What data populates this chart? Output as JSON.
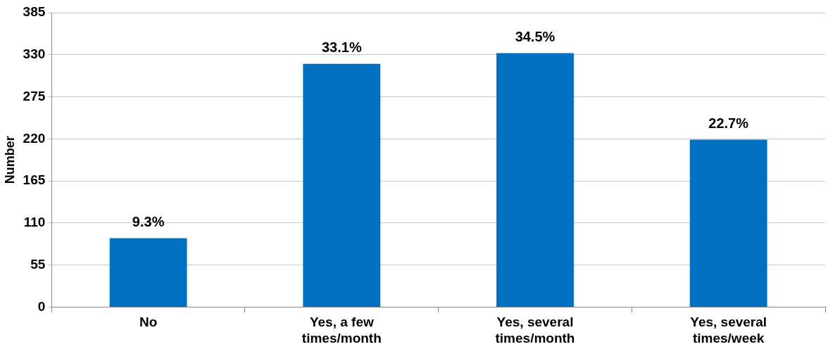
{
  "chart_data": {
    "type": "bar",
    "ylabel": "Number",
    "categories": [
      "No",
      "Yes, a few times/month",
      "Yes, several times/month",
      "Yes, several times/week"
    ],
    "values": [
      90,
      318,
      332,
      219
    ],
    "annotations": [
      {
        "text": "9.3%",
        "x": "No",
        "y": 90
      },
      {
        "text": "33.1%",
        "x": "Yes, a few times/month",
        "y": 318
      },
      {
        "text": "34.5%",
        "x": "Yes, several times/month",
        "y": 332
      },
      {
        "text": "22.7%",
        "x": "Yes, several times/week",
        "y": 219
      }
    ],
    "color": "#0070c0",
    "ylim": [
      0,
      385
    ],
    "yticks": [
      0,
      55,
      110,
      165,
      220,
      275,
      330,
      385
    ],
    "grid": "y"
  }
}
